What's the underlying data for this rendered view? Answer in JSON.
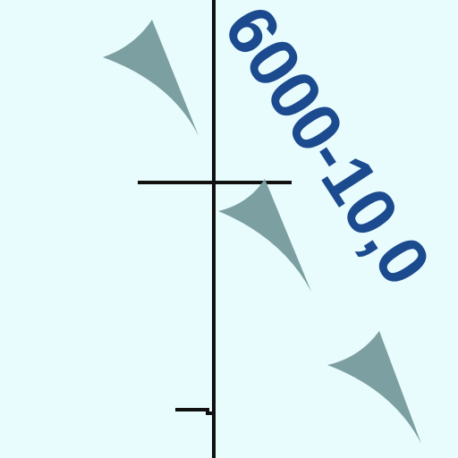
{
  "label": {
    "text": "6000-10,0"
  }
}
